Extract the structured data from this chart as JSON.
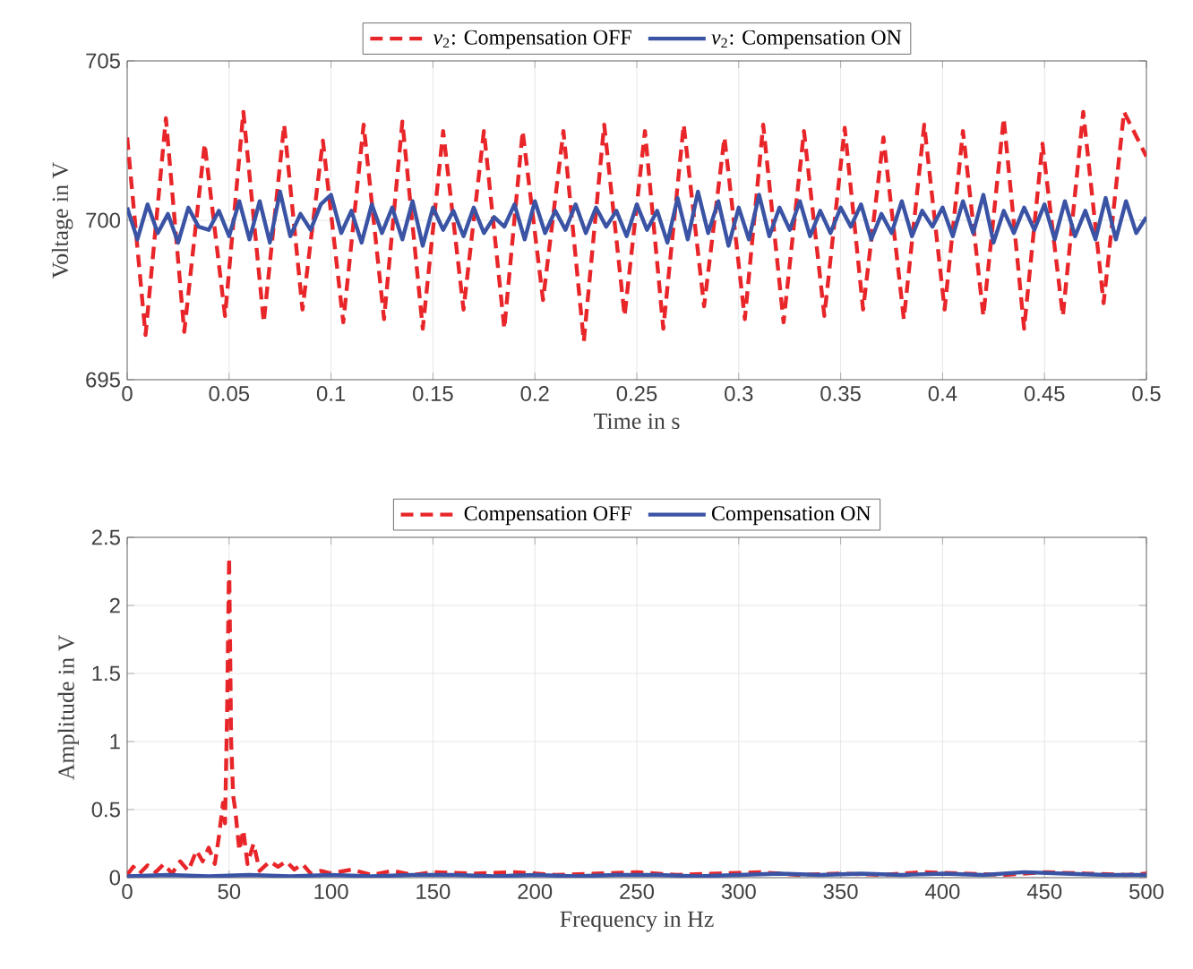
{
  "chart_data": [
    {
      "type": "line",
      "xlabel": "Time in s",
      "ylabel": "Voltage in V",
      "xlim": [
        0,
        0.5
      ],
      "ylim": [
        695,
        705
      ],
      "xticks": [
        0,
        0.05,
        0.1,
        0.15,
        0.2,
        0.25,
        0.3,
        0.35,
        0.4,
        0.45,
        0.5
      ],
      "yticks": [
        695,
        700,
        705
      ],
      "grid": true,
      "legend": "top",
      "series": [
        {
          "name": "*v*$_{2}$: Compensation OFF",
          "color": "#e8262a",
          "line_style": "dashed",
          "x": [
            0,
            0.009,
            0.019,
            0.028,
            0.038,
            0.048,
            0.057,
            0.067,
            0.077,
            0.086,
            0.096,
            0.106,
            0.116,
            0.126,
            0.135,
            0.145,
            0.155,
            0.165,
            0.175,
            0.185,
            0.194,
            0.204,
            0.214,
            0.224,
            0.234,
            0.244,
            0.254,
            0.263,
            0.273,
            0.283,
            0.293,
            0.303,
            0.312,
            0.322,
            0.332,
            0.342,
            0.352,
            0.361,
            0.371,
            0.381,
            0.391,
            0.401,
            0.41,
            0.42,
            0.43,
            0.44,
            0.449,
            0.459,
            0.469,
            0.479,
            0.489,
            0.5
          ],
          "values": [
            702.6,
            696.4,
            703.2,
            696.5,
            702.4,
            697.0,
            703.4,
            696.8,
            703.0,
            697.2,
            702.5,
            696.8,
            703.0,
            696.9,
            703.1,
            696.6,
            702.8,
            697.2,
            702.8,
            696.6,
            702.8,
            697.5,
            702.8,
            696.2,
            703.0,
            697.0,
            702.8,
            696.6,
            703.0,
            697.3,
            702.6,
            696.9,
            703.0,
            696.8,
            702.8,
            697.0,
            702.9,
            697.2,
            702.6,
            696.9,
            703.0,
            697.2,
            702.8,
            697.0,
            703.2,
            696.6,
            702.4,
            697.0,
            703.4,
            697.4,
            703.4,
            702.0
          ]
        },
        {
          "name": "*v*$_{2}$: Compensation ON",
          "color": "#3a53a4",
          "line_style": "solid",
          "x": [
            0,
            0.005,
            0.01,
            0.015,
            0.02,
            0.025,
            0.03,
            0.035,
            0.04,
            0.045,
            0.05,
            0.055,
            0.06,
            0.065,
            0.07,
            0.075,
            0.08,
            0.085,
            0.09,
            0.095,
            0.1,
            0.105,
            0.11,
            0.115,
            0.12,
            0.125,
            0.13,
            0.135,
            0.14,
            0.145,
            0.15,
            0.155,
            0.16,
            0.165,
            0.17,
            0.175,
            0.18,
            0.185,
            0.19,
            0.195,
            0.2,
            0.205,
            0.21,
            0.215,
            0.22,
            0.225,
            0.23,
            0.235,
            0.24,
            0.245,
            0.25,
            0.255,
            0.26,
            0.265,
            0.27,
            0.275,
            0.28,
            0.285,
            0.29,
            0.295,
            0.3,
            0.305,
            0.31,
            0.315,
            0.32,
            0.325,
            0.33,
            0.335,
            0.34,
            0.345,
            0.35,
            0.355,
            0.36,
            0.365,
            0.37,
            0.375,
            0.38,
            0.385,
            0.39,
            0.395,
            0.4,
            0.405,
            0.41,
            0.415,
            0.42,
            0.425,
            0.43,
            0.435,
            0.44,
            0.445,
            0.45,
            0.455,
            0.46,
            0.465,
            0.47,
            0.475,
            0.48,
            0.485,
            0.49,
            0.495,
            0.5
          ],
          "values": [
            700.4,
            699.4,
            700.5,
            699.6,
            700.2,
            699.3,
            700.4,
            699.8,
            699.7,
            700.3,
            699.5,
            700.6,
            699.4,
            700.6,
            699.3,
            700.9,
            699.5,
            700.2,
            699.7,
            700.5,
            700.8,
            699.6,
            700.3,
            699.3,
            700.5,
            699.6,
            700.4,
            699.4,
            700.6,
            699.2,
            700.4,
            699.7,
            700.3,
            699.5,
            700.4,
            699.6,
            700.1,
            699.8,
            700.5,
            699.4,
            700.6,
            699.6,
            700.3,
            699.7,
            700.5,
            699.6,
            700.4,
            699.8,
            700.3,
            699.5,
            700.5,
            699.7,
            700.3,
            699.3,
            700.7,
            699.4,
            700.9,
            699.6,
            700.6,
            699.2,
            700.4,
            699.4,
            700.8,
            699.5,
            700.4,
            699.7,
            700.6,
            699.5,
            700.3,
            699.6,
            700.4,
            699.8,
            700.5,
            699.4,
            700.2,
            699.6,
            700.6,
            699.5,
            700.3,
            699.8,
            700.4,
            699.5,
            700.6,
            699.6,
            700.8,
            699.3,
            700.3,
            699.6,
            700.4,
            699.7,
            700.5,
            699.4,
            700.6,
            699.5,
            700.3,
            699.4,
            700.7,
            699.4,
            700.6,
            699.6,
            700.1
          ]
        }
      ]
    },
    {
      "type": "line",
      "xlabel": "Frequency in Hz",
      "ylabel": "Amplitude in V",
      "xlim": [
        0,
        500
      ],
      "ylim": [
        0,
        2.5
      ],
      "xticks": [
        0,
        50,
        100,
        150,
        200,
        250,
        300,
        350,
        400,
        450,
        500
      ],
      "yticks": [
        0,
        0.5,
        1,
        1.5,
        2,
        2.5
      ],
      "grid": true,
      "legend": "top",
      "series": [
        {
          "name": "Compensation OFF",
          "color": "#e8262a",
          "line_style": "dashed",
          "x": [
            0,
            3,
            6,
            10,
            14,
            18,
            22,
            26,
            30,
            34,
            37,
            40,
            43,
            45,
            47,
            48,
            49,
            50,
            51,
            52,
            53,
            55,
            57,
            59,
            62,
            65,
            70,
            74,
            78,
            82,
            86,
            90,
            95,
            100,
            110,
            120,
            130,
            140,
            150,
            170,
            190,
            210,
            230,
            250,
            270,
            290,
            310,
            330,
            350,
            370,
            390,
            410,
            430,
            450,
            470,
            490,
            500
          ],
          "values": [
            0.02,
            0.08,
            0.03,
            0.09,
            0.04,
            0.1,
            0.03,
            0.12,
            0.05,
            0.2,
            0.12,
            0.22,
            0.1,
            0.3,
            0.55,
            0.4,
            1.2,
            2.35,
            1.0,
            0.6,
            0.5,
            0.2,
            0.35,
            0.1,
            0.25,
            0.05,
            0.12,
            0.08,
            0.12,
            0.06,
            0.1,
            0.03,
            0.05,
            0.03,
            0.06,
            0.02,
            0.05,
            0.02,
            0.04,
            0.03,
            0.04,
            0.02,
            0.03,
            0.04,
            0.02,
            0.03,
            0.04,
            0.02,
            0.03,
            0.02,
            0.04,
            0.03,
            0.02,
            0.04,
            0.03,
            0.02,
            0.03
          ]
        },
        {
          "name": "Compensation ON",
          "color": "#3a53a4",
          "line_style": "solid",
          "x": [
            0,
            20,
            40,
            60,
            80,
            100,
            120,
            140,
            160,
            180,
            200,
            220,
            240,
            260,
            280,
            300,
            320,
            340,
            360,
            380,
            400,
            420,
            440,
            460,
            480,
            500
          ],
          "values": [
            0.01,
            0.02,
            0.01,
            0.02,
            0.01,
            0.02,
            0.01,
            0.02,
            0.02,
            0.01,
            0.02,
            0.01,
            0.02,
            0.02,
            0.01,
            0.02,
            0.03,
            0.02,
            0.03,
            0.02,
            0.03,
            0.02,
            0.04,
            0.03,
            0.02,
            0.02
          ]
        }
      ]
    }
  ]
}
